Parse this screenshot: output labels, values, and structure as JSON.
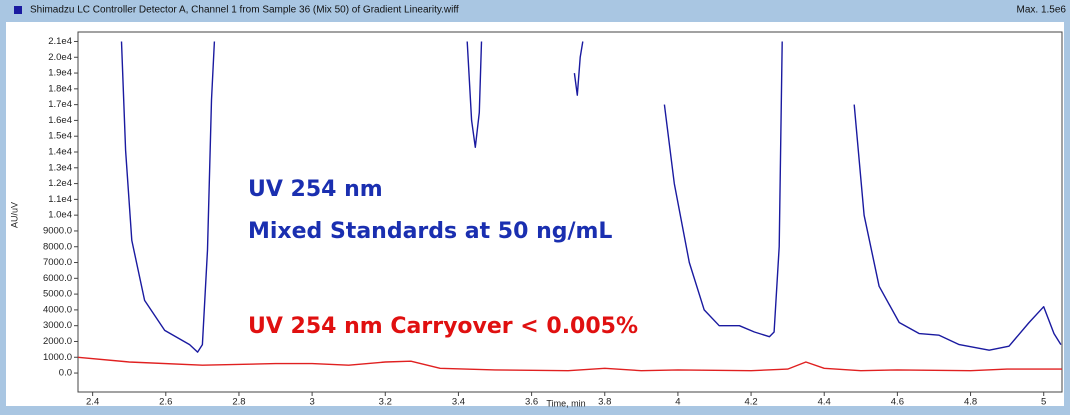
{
  "chart_data": {
    "type": "line",
    "title": "Shimadzu LC Controller Detector A, Channel 1 from Sample 36 (Mix 50) of Gradient Linearity.wiff",
    "subtitle": "Max. 1.5e6",
    "x_label": "Time, min",
    "y_label": "AU/uV",
    "xlim": [
      2.36,
      5.05
    ],
    "ylim": [
      -1200,
      21600
    ],
    "xticks": [
      2.4,
      2.6,
      2.8,
      3.0,
      3.2,
      3.4,
      3.6,
      3.8,
      4.0,
      4.2,
      4.4,
      4.6,
      4.8,
      5.0
    ],
    "yticks": [
      {
        "value": 0,
        "label": "0.0"
      },
      {
        "value": 1000,
        "label": "1000.0"
      },
      {
        "value": 2000,
        "label": "2000.0"
      },
      {
        "value": 3000,
        "label": "3000.0"
      },
      {
        "value": 4000,
        "label": "4000.0"
      },
      {
        "value": 5000,
        "label": "5000.0"
      },
      {
        "value": 6000,
        "label": "6000.0"
      },
      {
        "value": 7000,
        "label": "7000.0"
      },
      {
        "value": 8000,
        "label": "8000.0"
      },
      {
        "value": 9000,
        "label": "9000.0"
      },
      {
        "value": 10000,
        "label": "1.0e4"
      },
      {
        "value": 11000,
        "label": "1.1e4"
      },
      {
        "value": 12000,
        "label": "1.2e4"
      },
      {
        "value": 13000,
        "label": "1.3e4"
      },
      {
        "value": 14000,
        "label": "1.4e4"
      },
      {
        "value": 15000,
        "label": "1.5e4"
      },
      {
        "value": 16000,
        "label": "1.6e4"
      },
      {
        "value": 17000,
        "label": "1.7e4"
      },
      {
        "value": 18000,
        "label": "1.8e4"
      },
      {
        "value": 19000,
        "label": "1.9e4"
      },
      {
        "value": 20000,
        "label": "2.0e4"
      },
      {
        "value": 21000,
        "label": "2.1e4"
      }
    ],
    "series": [
      {
        "color": "#1a1aa0",
        "x": [
          2.479,
          2.49,
          2.507,
          2.542,
          2.597,
          2.665,
          2.687,
          2.7,
          2.714,
          2.725,
          2.733,
          3.416,
          3.424,
          3.436,
          3.446,
          3.457,
          3.463,
          3.709,
          3.717,
          3.725,
          3.733,
          3.74,
          3.944,
          3.963,
          3.99,
          4.031,
          4.072,
          4.113,
          4.168,
          4.209,
          4.25,
          4.263,
          4.277,
          4.285,
          4.463,
          4.482,
          4.509,
          4.55,
          4.605,
          4.66,
          4.714,
          4.769,
          4.851,
          4.905,
          4.96,
          5.0,
          5.028,
          5.047
        ],
        "values": [
          21000,
          14100,
          8400,
          4600,
          2700,
          1800,
          1330,
          1800,
          7800,
          17300,
          21000,
          null,
          21000,
          16000,
          14300,
          16500,
          21000,
          null,
          19000,
          17600,
          20000,
          21000,
          null,
          17000,
          12000,
          7000,
          4000,
          3000,
          3000,
          2600,
          2300,
          2600,
          8000,
          21000,
          null,
          17000,
          10000,
          5500,
          3200,
          2500,
          2400,
          1800,
          1450,
          1700,
          3200,
          4200,
          2500,
          1800
        ]
      },
      {
        "color": "#e02020",
        "x": [
          2.36,
          2.5,
          2.7,
          2.9,
          3.0,
          3.1,
          3.2,
          3.27,
          3.35,
          3.5,
          3.7,
          3.8,
          3.9,
          4.0,
          4.2,
          4.3,
          4.35,
          4.4,
          4.5,
          4.6,
          4.8,
          4.9,
          5.05
        ],
        "values": [
          1000,
          700,
          500,
          600,
          600,
          500,
          700,
          750,
          300,
          200,
          150,
          300,
          150,
          200,
          150,
          250,
          700,
          300,
          150,
          200,
          150,
          250,
          250
        ]
      }
    ],
    "annotations": [
      {
        "text": "UV 254 nm",
        "color": "#1a2fb0"
      },
      {
        "text": "Mixed Standards at 50 ng/mL",
        "color": "#1a2fb0"
      },
      {
        "text": "UV 254 nm Carryover < 0.005%",
        "color": "#e01010"
      }
    ]
  }
}
